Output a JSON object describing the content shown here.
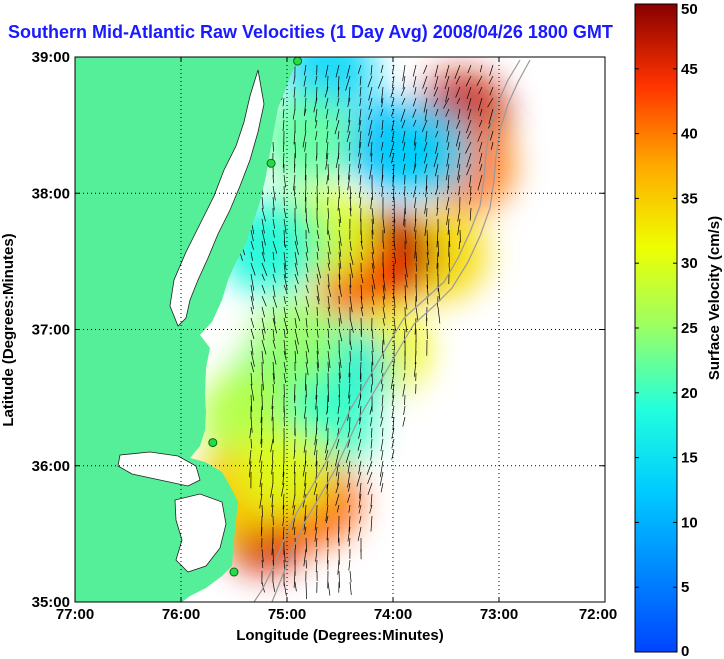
{
  "title": "Southern Mid-Atlantic Raw Velocities (1 Day Avg) 2008/04/26 1800 GMT",
  "title_color": "#1a1aff",
  "map": {
    "xlabel": "Longitude (Degrees:Minutes)",
    "ylabel": "Latitude (Degrees:Minutes)",
    "x_ticks": [
      {
        "value": -77,
        "label": "77:00"
      },
      {
        "value": -76,
        "label": "76:00"
      },
      {
        "value": -75,
        "label": "75:00"
      },
      {
        "value": -74,
        "label": "74:00"
      },
      {
        "value": -73,
        "label": "73:00"
      },
      {
        "value": -72,
        "label": "72:00"
      }
    ],
    "y_ticks": [
      {
        "value": 35,
        "label": "35:00"
      },
      {
        "value": 36,
        "label": "36:00"
      },
      {
        "value": 37,
        "label": "37:00"
      },
      {
        "value": 38,
        "label": "38:00"
      },
      {
        "value": 39,
        "label": "39:00"
      }
    ],
    "xlim": [
      -77,
      -72
    ],
    "ylim": [
      35,
      39
    ],
    "land_color": "#55ee99",
    "grid": true
  },
  "colorbar": {
    "label": "Surface Velocity (cm/s)",
    "min": 0,
    "max": 50,
    "ticks": [
      {
        "value": 0,
        "label": "0"
      },
      {
        "value": 5,
        "label": "5"
      },
      {
        "value": 10,
        "label": "10"
      },
      {
        "value": 15,
        "label": "15"
      },
      {
        "value": 20,
        "label": "20"
      },
      {
        "value": 25,
        "label": "25"
      },
      {
        "value": 30,
        "label": "30"
      },
      {
        "value": 35,
        "label": "35"
      },
      {
        "value": 40,
        "label": "40"
      },
      {
        "value": 45,
        "label": "45"
      },
      {
        "value": 50,
        "label": "50"
      }
    ],
    "colormap": "jet"
  },
  "station_color": "#22dd44",
  "stations": [
    {
      "lon": -74.9,
      "lat": 38.97
    },
    {
      "lon": -75.15,
      "lat": 38.22
    },
    {
      "lon": -75.7,
      "lat": 36.17
    },
    {
      "lon": -75.5,
      "lat": 35.22
    }
  ],
  "speed_regions": [
    {
      "lon": -73.35,
      "lat": 38.55,
      "speed": 47
    },
    {
      "lon": -73.3,
      "lat": 38.2,
      "speed": 40
    },
    {
      "lon": -73.55,
      "lat": 37.55,
      "speed": 34
    },
    {
      "lon": -74.05,
      "lat": 37.55,
      "speed": 48
    },
    {
      "lon": -74.3,
      "lat": 37.4,
      "speed": 44
    },
    {
      "lon": -74.6,
      "lat": 37.7,
      "speed": 30
    },
    {
      "lon": -75.0,
      "lat": 37.65,
      "speed": 24
    },
    {
      "lon": -74.0,
      "lat": 38.35,
      "speed": 11
    },
    {
      "lon": -73.7,
      "lat": 38.3,
      "speed": 13
    },
    {
      "lon": -74.6,
      "lat": 38.9,
      "speed": 14
    },
    {
      "lon": -74.8,
      "lat": 38.4,
      "speed": 22
    },
    {
      "lon": -75.2,
      "lat": 37.6,
      "speed": 18
    },
    {
      "lon": -74.1,
      "lat": 36.85,
      "speed": 32
    },
    {
      "lon": -74.45,
      "lat": 36.7,
      "speed": 17
    },
    {
      "lon": -74.9,
      "lat": 36.9,
      "speed": 25
    },
    {
      "lon": -75.15,
      "lat": 36.55,
      "speed": 24
    },
    {
      "lon": -75.4,
      "lat": 36.35,
      "speed": 27
    },
    {
      "lon": -74.6,
      "lat": 36.3,
      "speed": 20
    },
    {
      "lon": -75.2,
      "lat": 35.55,
      "speed": 46
    },
    {
      "lon": -75.45,
      "lat": 35.8,
      "speed": 35
    },
    {
      "lon": -74.75,
      "lat": 35.75,
      "speed": 42
    },
    {
      "lon": -75.0,
      "lat": 35.95,
      "speed": 30
    }
  ]
}
